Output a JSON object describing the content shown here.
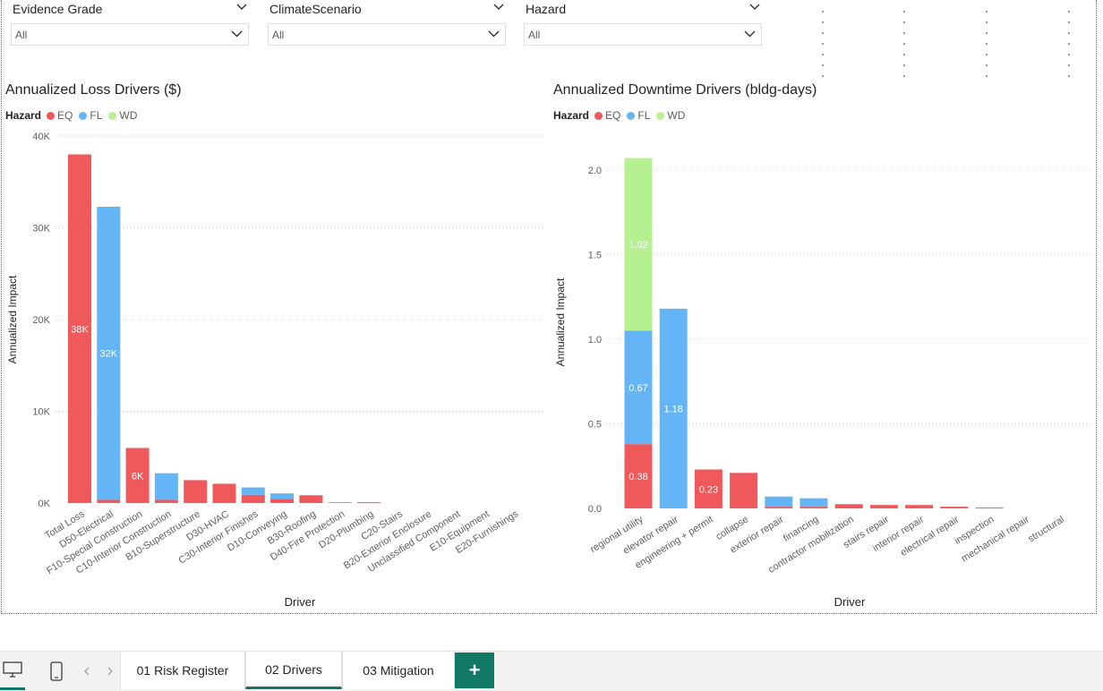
{
  "filters": [
    {
      "label": "Evidence Grade",
      "value": "All"
    },
    {
      "label": "ClimateScenario",
      "value": "All"
    },
    {
      "label": "Hazard",
      "value": "All"
    }
  ],
  "colors": {
    "EQ": "#f0595b",
    "FL": "#64b5f6",
    "WD": "#b5f191",
    "accent": "#117865"
  },
  "chart_data": [
    {
      "type": "bar",
      "stacked": true,
      "title": "Annualized Loss Drivers ($)",
      "legend_title": "Hazard",
      "legend": [
        "EQ",
        "FL",
        "WD"
      ],
      "legend_position": "top-left",
      "xlabel": "Driver",
      "ylabel": "Annualized Impact",
      "ylim": [
        0,
        40000
      ],
      "y_ticks": [
        "0K",
        "10K",
        "20K",
        "30K",
        "40K"
      ],
      "grid": true,
      "categories": [
        "Total Loss",
        "D50-Electrical",
        "F10-Special Construction",
        "C10-Interior Construction",
        "B10-Superstructure",
        "D30-HVAC",
        "C30-Interior Finishes",
        "D10-Conveying",
        "B30-Roofing",
        "D40-Fire Protection",
        "D20-Plumbing",
        "C20-Stairs",
        "B20-Exterior Enclosure",
        "Unclassified Component",
        "E10-Equipment",
        "E20-Furnishings"
      ],
      "series": [
        {
          "name": "EQ",
          "values": [
            38000,
            350,
            6000,
            350,
            2500,
            2100,
            900,
            450,
            850,
            0,
            80,
            0,
            0,
            0,
            0,
            0
          ]
        },
        {
          "name": "FL",
          "values": [
            0,
            31950,
            0,
            2900,
            0,
            0,
            800,
            600,
            0,
            100,
            0,
            0,
            0,
            0,
            0,
            0
          ]
        },
        {
          "name": "WD",
          "values": [
            0,
            0,
            0,
            0,
            0,
            0,
            0,
            0,
            0,
            0,
            0,
            0,
            0,
            0,
            0,
            0
          ]
        }
      ],
      "data_labels": [
        "38K",
        "32K",
        "6K",
        "3K",
        "2K",
        "2K"
      ]
    },
    {
      "type": "bar",
      "stacked": true,
      "title": "Annualized Downtime Drivers (bldg-days)",
      "legend_title": "Hazard",
      "legend": [
        "EQ",
        "FL",
        "WD"
      ],
      "legend_position": "top-left",
      "xlabel": "Driver",
      "ylabel": "Annualized Impact",
      "ylim": [
        0,
        2.2
      ],
      "y_ticks": [
        "0.0",
        "0.5",
        "1.0",
        "1.5",
        "2.0"
      ],
      "grid": true,
      "categories": [
        "regional utility",
        "elevator repair",
        "engineering + permit",
        "collapse",
        "exterior repair",
        "financing",
        "contractor mobilization",
        "stairs repair",
        "interior repair",
        "electrical repair",
        "inspection",
        "mechanical repair",
        "structural"
      ],
      "series": [
        {
          "name": "EQ",
          "values": [
            0.38,
            0,
            0.23,
            0.21,
            0.01,
            0.01,
            0.025,
            0.02,
            0.02,
            0.01,
            0.005,
            0,
            0
          ]
        },
        {
          "name": "FL",
          "values": [
            0.67,
            1.18,
            0,
            0,
            0.06,
            0.05,
            0,
            0,
            0,
            0,
            0,
            0,
            0
          ]
        },
        {
          "name": "WD",
          "values": [
            1.02,
            0,
            0,
            0,
            0,
            0,
            0,
            0,
            0,
            0,
            0,
            0,
            0
          ]
        }
      ],
      "data_labels": [
        "0.38",
        "0.67",
        "1.02",
        "1.18",
        "0.23",
        "0.21"
      ]
    }
  ],
  "pages": [
    "01 Risk Register",
    "02 Drivers",
    "03 Mitigation"
  ],
  "active_page": "02 Drivers",
  "add_page_label": "+",
  "icons": {
    "desktop": "desktop-view-icon",
    "phone": "mobile-view-icon",
    "prev": "chevron-left-icon",
    "next": "chevron-right-icon"
  }
}
